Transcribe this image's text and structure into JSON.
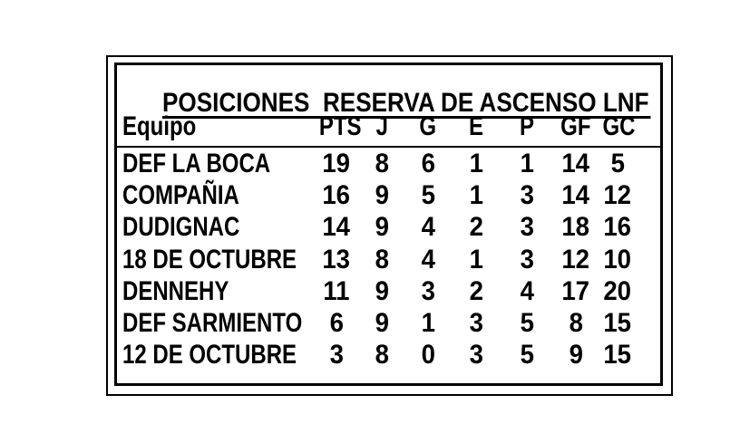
{
  "colors": {
    "background": "#ffffff",
    "text": "#000000",
    "border": "#000000"
  },
  "chart_data": {
    "type": "table",
    "title": "POSICIONES  RESERVA DE ASCENSO LNF",
    "columns": [
      "Equipo",
      "PTS",
      "J",
      "G",
      "E",
      "P",
      "GF",
      "GC"
    ],
    "rows": [
      [
        "DEF LA BOCA",
        "19",
        "8",
        "6",
        "1",
        "1",
        "14",
        "5"
      ],
      [
        "COMPAÑIA",
        "16",
        "9",
        "5",
        "1",
        "3",
        "14",
        "12"
      ],
      [
        "DUDIGNAC",
        "14",
        "9",
        "4",
        "2",
        "3",
        "18",
        "16"
      ],
      [
        "18 DE OCTUBRE",
        "13",
        "8",
        "4",
        "1",
        "3",
        "12",
        "10"
      ],
      [
        "DENNEHY",
        "11",
        "9",
        "3",
        "2",
        "4",
        "17",
        "20"
      ],
      [
        "DEF SARMIENTO",
        "6",
        "9",
        "1",
        "3",
        "5",
        "8",
        "15"
      ],
      [
        "12 DE OCTUBRE",
        "3",
        "8",
        "0",
        "3",
        "5",
        "9",
        "15"
      ]
    ]
  }
}
